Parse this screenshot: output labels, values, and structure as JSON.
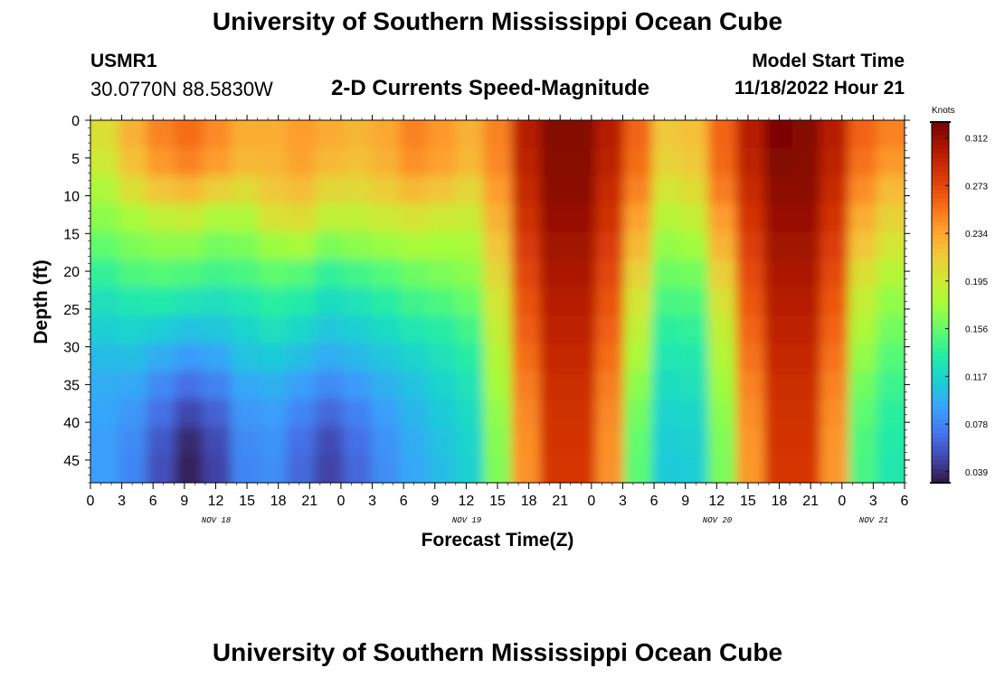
{
  "header": {
    "title": "University of Southern Mississippi Ocean Cube",
    "station_id": "USMR1",
    "station_coords": "30.0770N  88.5830W",
    "subtitle": "2-D Currents Speed-Magnitude",
    "start_label": "Model Start Time",
    "start_value": "11/18/2022 Hour 21"
  },
  "footer": {
    "title": "University of Southern Mississippi Ocean Cube"
  },
  "chart_data": {
    "type": "heatmap",
    "title": "2-D Currents Speed-Magnitude",
    "xlabel": "Forecast Time(Z)",
    "ylabel": "Depth (ft)",
    "x_ticks": [
      "0",
      "3",
      "6",
      "9",
      "12",
      "15",
      "18",
      "21",
      "0",
      "3",
      "6",
      "9",
      "12",
      "15",
      "18",
      "21",
      "0",
      "3",
      "6",
      "9",
      "12",
      "15",
      "18",
      "21",
      "0",
      "3",
      "6"
    ],
    "x_day_labels": [
      {
        "label": "NOV 18",
        "hour": 15.8
      },
      {
        "label": "NOV 19",
        "hour": 47.5
      },
      {
        "label": "NOV 20",
        "hour": 79.5
      },
      {
        "label": "NOV 21",
        "hour": 99.5
      }
    ],
    "x_range_hours": [
      0,
      78
    ],
    "y_ticks": [
      0,
      5,
      10,
      15,
      20,
      25,
      30,
      35,
      40,
      45
    ],
    "y_range": [
      0,
      48
    ],
    "colorbar": {
      "title": "Knots",
      "ticks": [
        "0.312",
        "0.273",
        "0.234",
        "0.195",
        "0.156",
        "0.117",
        "0.078",
        "0.039"
      ],
      "range": [
        0.03,
        0.325
      ],
      "colors": [
        "#30123b",
        "#4145ab",
        "#4675ed",
        "#39a2fc",
        "#1bcfd4",
        "#24eca6",
        "#61fc6c",
        "#a4fc3b",
        "#d1e834",
        "#f3c63a",
        "#fe9b2d",
        "#f36315",
        "#d93806",
        "#b11901",
        "#7a0403"
      ]
    },
    "grid": [
      [
        0.205,
        0.23,
        0.25,
        0.258,
        0.247,
        0.232,
        0.232,
        0.24,
        0.233,
        0.228,
        0.235,
        0.25,
        0.242,
        0.23,
        0.25,
        0.3,
        0.321,
        0.321,
        0.3,
        0.262,
        0.218,
        0.223,
        0.262,
        0.3,
        0.323,
        0.321,
        0.3,
        0.262,
        0.25
      ],
      [
        0.196,
        0.222,
        0.242,
        0.25,
        0.24,
        0.226,
        0.228,
        0.237,
        0.226,
        0.222,
        0.23,
        0.245,
        0.238,
        0.226,
        0.248,
        0.298,
        0.32,
        0.32,
        0.298,
        0.258,
        0.212,
        0.218,
        0.26,
        0.298,
        0.322,
        0.32,
        0.298,
        0.256,
        0.242
      ],
      [
        0.182,
        0.204,
        0.22,
        0.226,
        0.214,
        0.206,
        0.219,
        0.224,
        0.21,
        0.208,
        0.216,
        0.226,
        0.22,
        0.21,
        0.24,
        0.293,
        0.318,
        0.318,
        0.293,
        0.25,
        0.2,
        0.206,
        0.252,
        0.292,
        0.318,
        0.318,
        0.292,
        0.246,
        0.225
      ],
      [
        0.17,
        0.18,
        0.19,
        0.194,
        0.182,
        0.182,
        0.202,
        0.206,
        0.19,
        0.19,
        0.196,
        0.202,
        0.196,
        0.194,
        0.23,
        0.288,
        0.314,
        0.314,
        0.288,
        0.238,
        0.186,
        0.192,
        0.24,
        0.286,
        0.314,
        0.314,
        0.286,
        0.232,
        0.212
      ],
      [
        0.156,
        0.165,
        0.17,
        0.17,
        0.162,
        0.165,
        0.175,
        0.18,
        0.165,
        0.17,
        0.174,
        0.18,
        0.178,
        0.18,
        0.22,
        0.282,
        0.31,
        0.31,
        0.282,
        0.226,
        0.172,
        0.177,
        0.228,
        0.28,
        0.31,
        0.31,
        0.28,
        0.22,
        0.2
      ],
      [
        0.14,
        0.15,
        0.152,
        0.15,
        0.145,
        0.148,
        0.155,
        0.152,
        0.14,
        0.146,
        0.152,
        0.16,
        0.165,
        0.17,
        0.21,
        0.276,
        0.306,
        0.306,
        0.276,
        0.212,
        0.16,
        0.162,
        0.214,
        0.274,
        0.306,
        0.306,
        0.274,
        0.205,
        0.185
      ],
      [
        0.125,
        0.132,
        0.133,
        0.128,
        0.125,
        0.13,
        0.138,
        0.134,
        0.124,
        0.128,
        0.136,
        0.145,
        0.15,
        0.158,
        0.2,
        0.27,
        0.302,
        0.302,
        0.27,
        0.2,
        0.148,
        0.15,
        0.202,
        0.268,
        0.302,
        0.302,
        0.268,
        0.192,
        0.172
      ],
      [
        0.115,
        0.118,
        0.114,
        0.108,
        0.11,
        0.118,
        0.125,
        0.12,
        0.11,
        0.115,
        0.122,
        0.13,
        0.136,
        0.146,
        0.192,
        0.264,
        0.298,
        0.298,
        0.264,
        0.19,
        0.138,
        0.14,
        0.192,
        0.262,
        0.298,
        0.298,
        0.262,
        0.182,
        0.162
      ],
      [
        0.105,
        0.106,
        0.098,
        0.09,
        0.095,
        0.108,
        0.112,
        0.106,
        0.098,
        0.103,
        0.11,
        0.118,
        0.126,
        0.136,
        0.184,
        0.258,
        0.294,
        0.294,
        0.258,
        0.18,
        0.13,
        0.132,
        0.184,
        0.256,
        0.294,
        0.294,
        0.256,
        0.172,
        0.152
      ],
      [
        0.098,
        0.096,
        0.082,
        0.07,
        0.078,
        0.096,
        0.1,
        0.092,
        0.082,
        0.09,
        0.1,
        0.108,
        0.118,
        0.128,
        0.178,
        0.252,
        0.29,
        0.29,
        0.252,
        0.17,
        0.124,
        0.126,
        0.176,
        0.25,
        0.29,
        0.29,
        0.25,
        0.162,
        0.144
      ],
      [
        0.095,
        0.088,
        0.07,
        0.052,
        0.064,
        0.088,
        0.092,
        0.08,
        0.066,
        0.078,
        0.092,
        0.102,
        0.112,
        0.122,
        0.172,
        0.248,
        0.288,
        0.288,
        0.248,
        0.162,
        0.118,
        0.12,
        0.17,
        0.246,
        0.288,
        0.288,
        0.246,
        0.155,
        0.138
      ],
      [
        0.092,
        0.082,
        0.06,
        0.04,
        0.054,
        0.082,
        0.086,
        0.07,
        0.054,
        0.07,
        0.086,
        0.098,
        0.108,
        0.118,
        0.168,
        0.245,
        0.286,
        0.286,
        0.245,
        0.156,
        0.114,
        0.116,
        0.166,
        0.243,
        0.286,
        0.286,
        0.243,
        0.15,
        0.134
      ],
      [
        0.092,
        0.08,
        0.056,
        0.036,
        0.05,
        0.08,
        0.084,
        0.066,
        0.05,
        0.066,
        0.084,
        0.096,
        0.106,
        0.116,
        0.166,
        0.244,
        0.285,
        0.285,
        0.244,
        0.154,
        0.112,
        0.114,
        0.164,
        0.242,
        0.285,
        0.285,
        0.242,
        0.148,
        0.132
      ]
    ]
  }
}
